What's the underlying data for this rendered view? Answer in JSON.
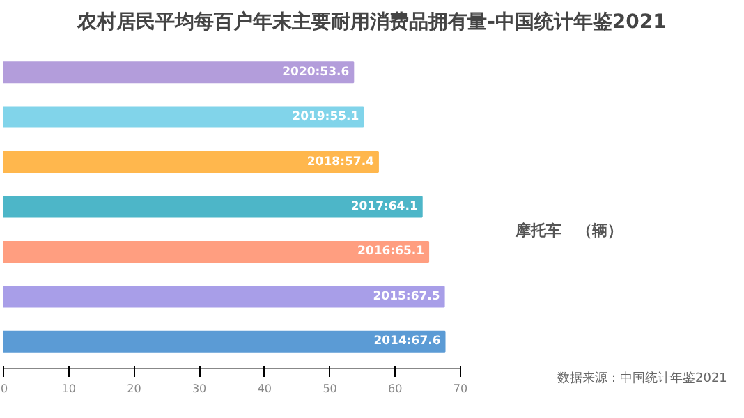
{
  "chart_data": {
    "type": "bar",
    "orientation": "horizontal",
    "title": "农村居民平均每百户年末主要耐用消费品拥有量-中国统计年鉴2021",
    "categories": [
      null,
      null,
      null,
      null,
      null,
      null,
      null
    ],
    "values": [
      53.6,
      55.1,
      57.4,
      64.1,
      65.1,
      67.5,
      67.6
    ],
    "value_labels": [
      "2020:53.6",
      "2019:55.1",
      "2018:57.4",
      "2017:64.1",
      "2016:65.1",
      "2015:67.5",
      "2014:67.6"
    ],
    "colors": [
      "#b39ddb",
      "#81d4ea",
      "#ffb74d",
      "#4db6c8",
      "#ff9e80",
      "#a89ee8",
      "#5b9bd5"
    ],
    "xlim": [
      0,
      70
    ],
    "xticks": [
      0,
      10,
      20,
      30,
      40,
      50,
      60,
      70
    ],
    "tick_labels": "x",
    "grid": false,
    "annotations": [
      "摩托车　（辆）",
      "数据来源：中国统计年鉴2021"
    ]
  }
}
